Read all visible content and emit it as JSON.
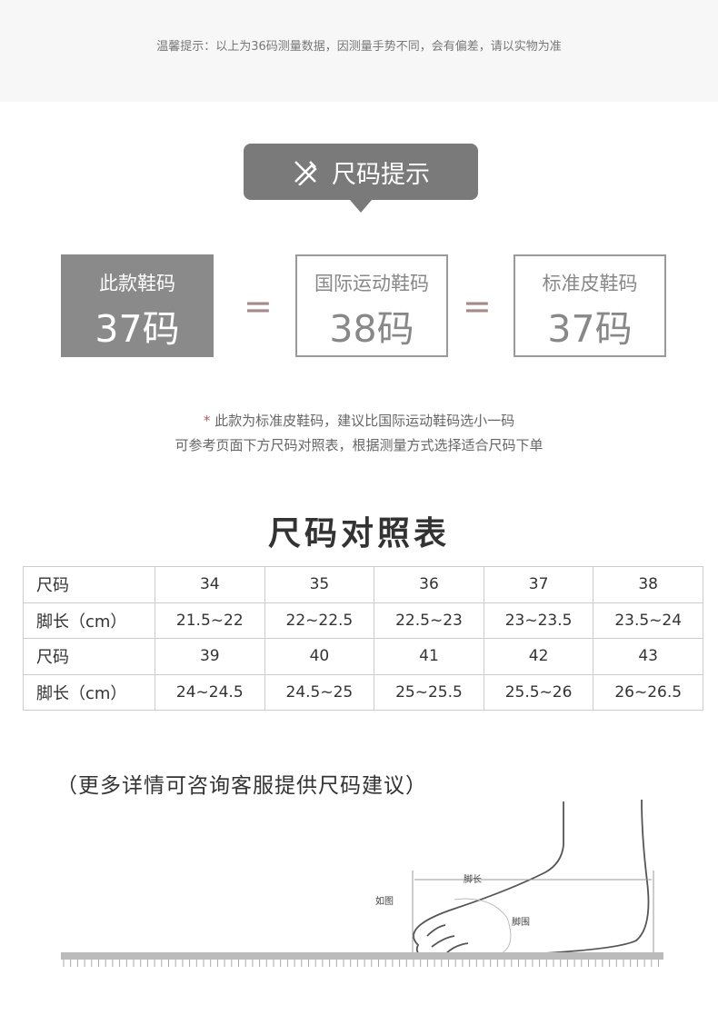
{
  "top_notice": "温馨提示：以上为36码测量数据，因测量手势不同，会有偏差，请以实物为准",
  "badge": {
    "icon": "ruler-pencil-icon",
    "label": "尺码提示"
  },
  "boxes": [
    {
      "title": "此款鞋码",
      "value": "37码"
    },
    {
      "title": "国际运动鞋码",
      "value": "38码"
    },
    {
      "title": "标准皮鞋码",
      "value": "37码"
    }
  ],
  "equals": "=",
  "notes": {
    "star": "*",
    "line1": " 此款为标准皮鞋码，建议比国际运动鞋码选小一码",
    "line2": "可参考页面下方尺码对照表，根据测量方式选择适合尺码下单"
  },
  "table_title": "尺码对照表",
  "table": [
    [
      "尺码",
      "34",
      "35",
      "36",
      "37",
      "38"
    ],
    [
      "脚长（cm）",
      "21.5~22",
      "22~22.5",
      "22.5~23",
      "23~23.5",
      "23.5~24"
    ],
    [
      "尺码",
      "39",
      "40",
      "41",
      "42",
      "43"
    ],
    [
      "脚长（cm）",
      "24~24.5",
      "24.5~25",
      "25~25.5",
      "25.5~26",
      "26~26.5"
    ]
  ],
  "more_info": "（更多详情可咨询客服提供尺码建议）",
  "diagram": {
    "label_ref": "如图",
    "label_length": "脚长",
    "label_girth": "脚围"
  }
}
